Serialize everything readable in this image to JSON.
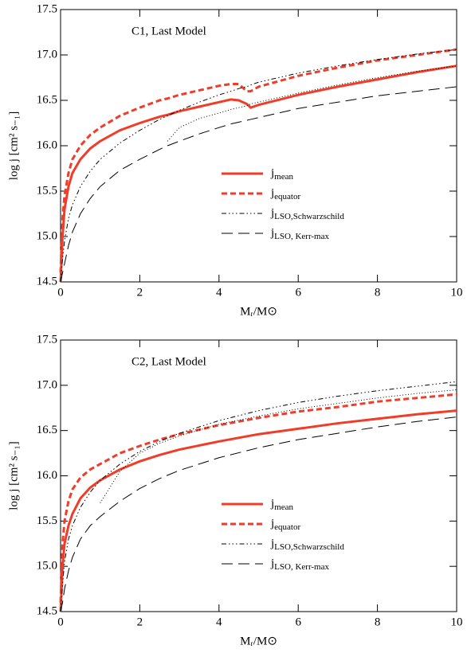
{
  "chart_data": [
    {
      "type": "line",
      "title": "C1, Last Model",
      "x_label": "Mᵣ/M⊙",
      "y_label": "log j [cm² s₋₁]",
      "xlim": [
        0,
        10
      ],
      "ylim": [
        14.5,
        17.5
      ],
      "xticks": [
        0,
        2,
        4,
        6,
        8,
        10
      ],
      "yticks": [
        14.5,
        {
          "value": 15,
          "label": "15.0"
        },
        15.5,
        {
          "value": 16,
          "label": "16.0"
        },
        16.5,
        {
          "value": 17,
          "label": "17.0"
        },
        17.5
      ],
      "x": [
        0,
        0.05,
        0.1,
        0.2,
        0.3,
        0.5,
        0.75,
        1,
        1.5,
        2,
        2.5,
        2.7,
        3,
        3.5,
        4,
        4.3,
        4.5,
        4.7,
        4.8,
        5,
        6,
        7,
        8,
        9,
        10
      ],
      "series": [
        {
          "name": "jmean",
          "color": "#f03c28",
          "dash": "solid",
          "values": [
            14.5,
            15.0,
            15.3,
            15.55,
            15.7,
            15.85,
            15.97,
            16.05,
            16.17,
            16.25,
            16.32,
            16.34,
            16.38,
            16.43,
            16.48,
            16.51,
            16.5,
            16.46,
            16.42,
            16.45,
            16.56,
            16.65,
            16.73,
            16.81,
            16.88
          ]
        },
        {
          "name": "jequator",
          "color": "#f03c28",
          "dash": "dashed",
          "values": [
            14.6,
            15.2,
            15.45,
            15.7,
            15.85,
            16.0,
            16.12,
            16.2,
            16.33,
            16.42,
            16.5,
            16.52,
            16.56,
            16.61,
            16.66,
            16.68,
            16.68,
            16.6,
            16.6,
            16.65,
            16.77,
            16.86,
            16.94,
            17.0,
            17.06
          ]
        },
        {
          "name": "jLSO,Schwarzschild",
          "color": "#000000",
          "dash": "dashdot",
          "values": [
            14.5,
            14.75,
            14.95,
            15.2,
            15.35,
            15.55,
            15.72,
            15.85,
            16.03,
            16.17,
            16.29,
            16.33,
            16.39,
            16.48,
            16.56,
            16.6,
            16.63,
            16.65,
            16.67,
            16.7,
            16.8,
            16.88,
            16.95,
            17.01,
            17.06
          ]
        },
        {
          "name": "jLSO, Kerr-max",
          "color": "#000000",
          "dash": "longdash",
          "values": [
            14.5,
            14.6,
            14.7,
            14.9,
            15.05,
            15.25,
            15.42,
            15.55,
            15.73,
            15.85,
            15.96,
            16.0,
            16.05,
            16.13,
            16.2,
            16.24,
            16.26,
            16.28,
            16.29,
            16.31,
            16.41,
            16.48,
            16.55,
            16.6,
            16.65
          ]
        },
        {
          "color": "#000000",
          "dash": "dotted",
          "values": [
            null,
            null,
            null,
            null,
            null,
            null,
            null,
            null,
            null,
            null,
            null,
            16.05,
            16.2,
            16.3,
            16.36,
            16.4,
            16.42,
            16.44,
            16.46,
            16.48,
            16.58,
            16.67,
            16.75,
            16.82,
            16.88
          ]
        }
      ]
    },
    {
      "type": "line",
      "title": "C2, Last Model",
      "x_label": "Mᵣ/M⊙",
      "y_label": "log j [cm² s₋₁]",
      "xlim": [
        0,
        10
      ],
      "ylim": [
        14.5,
        17.5
      ],
      "xticks": [
        0,
        2,
        4,
        6,
        8,
        10
      ],
      "yticks": [
        14.5,
        {
          "value": 15,
          "label": "15.0"
        },
        15.5,
        {
          "value": 16,
          "label": "16.0"
        },
        16.5,
        {
          "value": 17,
          "label": "17.0"
        },
        17.5
      ],
      "x": [
        0,
        0.05,
        0.1,
        0.2,
        0.3,
        0.5,
        0.75,
        1,
        1.5,
        2,
        2.5,
        3,
        4,
        5,
        6,
        7,
        8,
        9,
        10
      ],
      "series": [
        {
          "name": "jmean",
          "color": "#f03c28",
          "dash": "solid",
          "values": [
            14.5,
            15.0,
            15.25,
            15.45,
            15.58,
            15.75,
            15.87,
            15.95,
            16.07,
            16.16,
            16.23,
            16.29,
            16.38,
            16.46,
            16.52,
            16.58,
            16.63,
            16.68,
            16.72
          ]
        },
        {
          "name": "jequator",
          "color": "#f03c28",
          "dash": "dashed",
          "values": [
            14.6,
            15.25,
            15.5,
            15.72,
            15.85,
            15.98,
            16.07,
            16.13,
            16.25,
            16.33,
            16.4,
            16.46,
            16.56,
            16.64,
            16.71,
            16.76,
            16.82,
            16.86,
            16.9
          ]
        },
        {
          "name": "jLSO,Schwarzschild",
          "color": "#000000",
          "dash": "dashdot",
          "values": [
            14.5,
            14.8,
            15.05,
            15.3,
            15.45,
            15.65,
            15.82,
            15.95,
            16.13,
            16.27,
            16.38,
            16.47,
            16.61,
            16.72,
            16.81,
            16.88,
            16.94,
            16.99,
            17.04
          ]
        },
        {
          "name": "jLSO, Kerr-max",
          "color": "#000000",
          "dash": "longdash",
          "values": [
            14.5,
            14.6,
            14.75,
            14.95,
            15.1,
            15.3,
            15.45,
            15.55,
            15.72,
            15.86,
            15.97,
            16.06,
            16.2,
            16.31,
            16.4,
            16.47,
            16.54,
            16.6,
            16.65
          ]
        },
        {
          "color": "#000000",
          "dash": "dotted",
          "values": [
            null,
            null,
            null,
            null,
            null,
            null,
            null,
            15.7,
            16.05,
            16.25,
            16.36,
            16.44,
            16.57,
            16.66,
            16.74,
            16.8,
            16.86,
            16.91,
            16.95
          ]
        }
      ]
    }
  ]
}
